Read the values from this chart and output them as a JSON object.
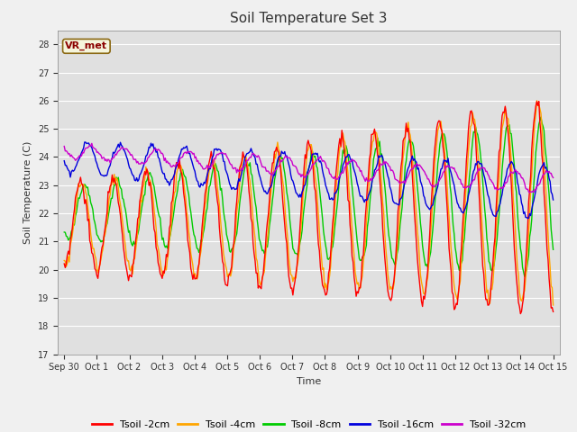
{
  "title": "Soil Temperature Set 3",
  "xlabel": "Time",
  "ylabel": "Soil Temperature (C)",
  "ylim": [
    17.0,
    28.5
  ],
  "yticks": [
    17.0,
    18.0,
    19.0,
    20.0,
    21.0,
    22.0,
    23.0,
    24.0,
    25.0,
    26.0,
    27.0,
    28.0
  ],
  "fig_facecolor": "#f0f0f0",
  "ax_facecolor": "#e0e0e0",
  "grid_color": "#ffffff",
  "colors": {
    "Tsoil -2cm": "#ff0000",
    "Tsoil -4cm": "#ffa500",
    "Tsoil -8cm": "#00cc00",
    "Tsoil -16cm": "#0000dd",
    "Tsoil -32cm": "#cc00cc"
  },
  "legend_label": "VR_met",
  "x_tick_labels": [
    "Sep 30",
    "Oct 1",
    "Oct 2",
    "Oct 3",
    "Oct 4",
    "Oct 5",
    "Oct 6",
    "Oct 7",
    "Oct 8",
    "Oct 9",
    "Oct 10",
    "Oct 11",
    "Oct 12",
    "Oct 13",
    "Oct 14",
    "Oct 15"
  ],
  "n_points": 480,
  "linewidth": 1.0,
  "title_fontsize": 11,
  "axis_fontsize": 8,
  "tick_fontsize": 7,
  "legend_fontsize": 8
}
